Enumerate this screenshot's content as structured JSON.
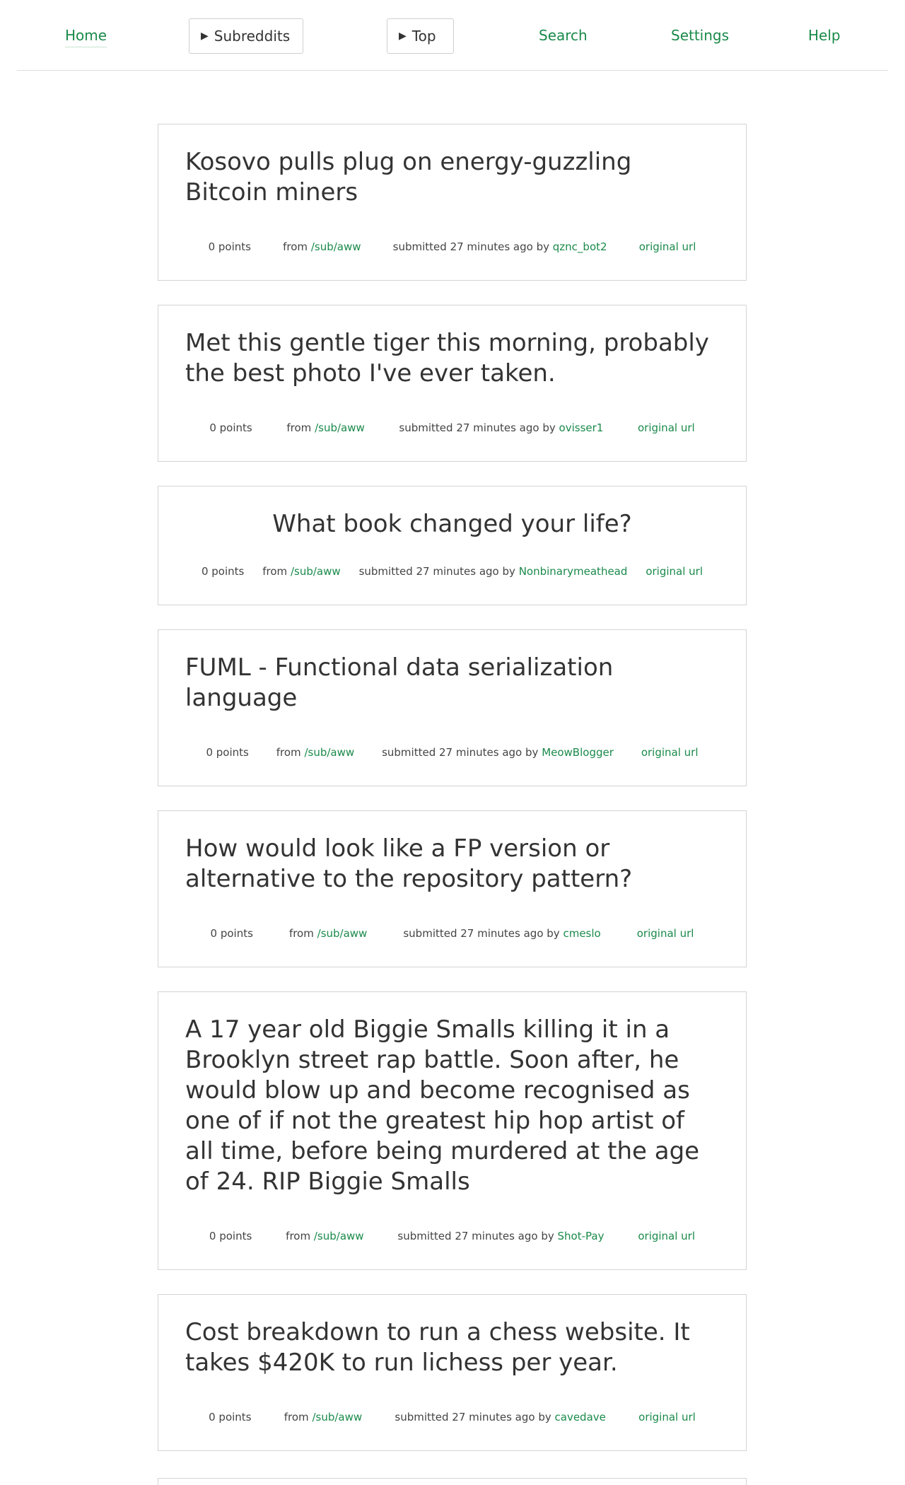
{
  "nav": {
    "home": "Home",
    "subreddits": "Subreddits",
    "top": "Top",
    "search": "Search",
    "settings": "Settings",
    "help": "Help"
  },
  "labels": {
    "points": "0 points",
    "from": "from",
    "subreddit": "/sub/aww",
    "submitted": "submitted 27 minutes ago",
    "by": "by",
    "original_url": "original url"
  },
  "posts": [
    {
      "title": "Kosovo pulls plug on energy-guzzling Bitcoin miners",
      "author": "qznc_bot2"
    },
    {
      "title": "Met this gentle tiger this morning, probably the best photo I've ever taken.",
      "author": "ovisser1"
    },
    {
      "title": "What book changed your life?",
      "author": "Nonbinarymeathead"
    },
    {
      "title": "FUML - Functional data serialization language",
      "author": "MeowBlogger"
    },
    {
      "title": "How would look like a FP version or alternative to the repository pattern?",
      "author": "cmeslo"
    },
    {
      "title": "A 17 year old Biggie Smalls killing it in a Brooklyn street rap battle. Soon after, he would blow up and become recognised as one of if not the greatest hip hop artist of all time, before being murdered at the age of 24. RIP Biggie Smalls",
      "author": "Shot-Pay"
    },
    {
      "title": "Cost breakdown to run a chess website. It takes $420K to run lichess per year.",
      "author": "cavedave"
    }
  ],
  "colors": {
    "accent": "#1a8a4a",
    "text": "#333333",
    "border": "#d4d4d4"
  }
}
